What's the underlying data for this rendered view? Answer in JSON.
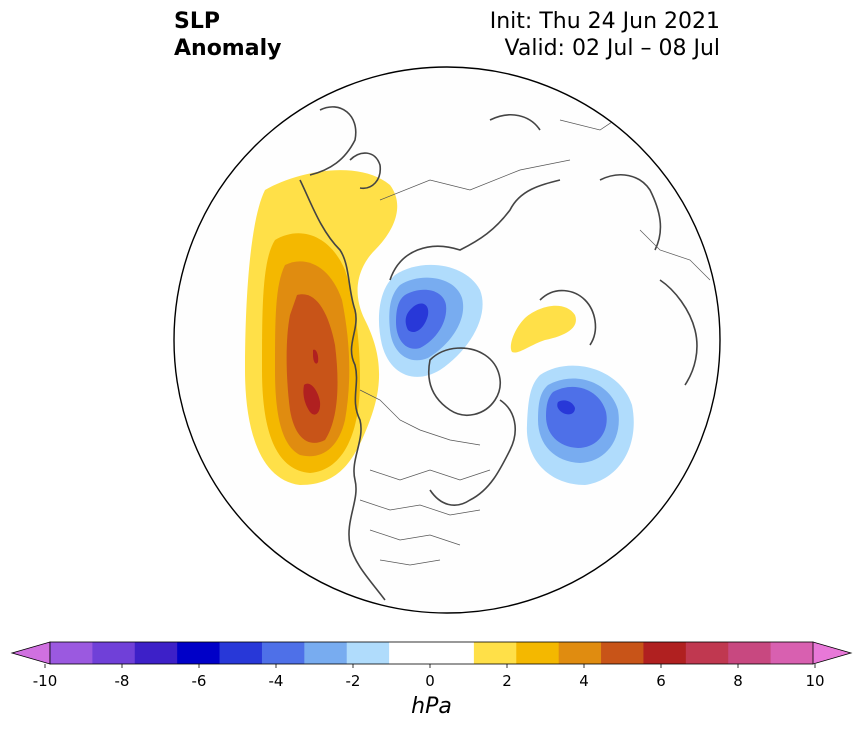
{
  "header": {
    "title_line1": "SLP",
    "title_line2": "Anomaly",
    "init": "Init: Thu 24 Jun 2021",
    "valid": "Valid: 02 Jul – 08 Jul"
  },
  "colorbar": {
    "unit_label": "hPa",
    "ticks": [
      "-10",
      "-8",
      "-6",
      "-4",
      "-2",
      "0",
      "2",
      "4",
      "6",
      "8",
      "10"
    ],
    "colors": [
      "#9b59e0",
      "#7040d8",
      "#3d20c8",
      "#0000c8",
      "#2838d8",
      "#4e70e8",
      "#78acf0",
      "#b0dcfc",
      "#ffffff",
      "#ffffff",
      "#ffe048",
      "#f4b800",
      "#e08c10",
      "#c85418",
      "#b02020",
      "#c03850",
      "#c84880",
      "#d860b0"
    ],
    "extend_low_color": "#d070e0",
    "extend_high_color": "#e878d8"
  },
  "map": {
    "projection": "north-polar-stereographic",
    "anomalies": [
      {
        "name": "positive-pacific",
        "peak": 7,
        "colors": [
          "#ffe048",
          "#f4b800",
          "#e08c10",
          "#c85418",
          "#b02020"
        ]
      },
      {
        "name": "negative-siberia",
        "peak": -5,
        "colors": [
          "#b0dcfc",
          "#78acf0",
          "#4e70e8",
          "#2838d8"
        ]
      },
      {
        "name": "negative-atlantic",
        "peak": -5,
        "colors": [
          "#b0dcfc",
          "#78acf0",
          "#4e70e8",
          "#2838d8"
        ]
      },
      {
        "name": "positive-europe",
        "peak": 2,
        "colors": [
          "#ffe048"
        ]
      }
    ]
  }
}
